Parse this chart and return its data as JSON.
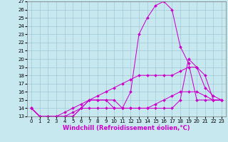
{
  "title": "",
  "xlabel": "Windchill (Refroidissement éolien,°C)",
  "ylabel": "",
  "xlim": [
    -0.5,
    23.5
  ],
  "ylim": [
    13,
    27
  ],
  "xticks": [
    0,
    1,
    2,
    3,
    4,
    5,
    6,
    7,
    8,
    9,
    10,
    11,
    12,
    13,
    14,
    15,
    16,
    17,
    18,
    19,
    20,
    21,
    22,
    23
  ],
  "yticks": [
    13,
    14,
    15,
    16,
    17,
    18,
    19,
    20,
    21,
    22,
    23,
    24,
    25,
    26,
    27
  ],
  "background_color": "#c8e8f0",
  "grid_color": "#a0c8d8",
  "line_color": "#cc00cc",
  "series": [
    {
      "x": [
        0,
        1,
        2,
        3,
        4,
        5,
        6,
        7,
        8,
        9,
        10,
        11,
        12,
        13,
        14,
        15,
        16,
        17,
        18,
        19,
        20,
        21,
        22,
        23
      ],
      "y": [
        14,
        13,
        13,
        13,
        13,
        13,
        14,
        15,
        15,
        15,
        14,
        14,
        16,
        23,
        25,
        26.5,
        27,
        26,
        21.5,
        19.5,
        15,
        15,
        15,
        15
      ]
    },
    {
      "x": [
        0,
        1,
        2,
        3,
        4,
        5,
        6,
        7,
        8,
        9,
        10,
        11,
        12,
        13,
        14,
        15,
        16,
        17,
        18,
        19,
        20,
        21,
        22,
        23
      ],
      "y": [
        14,
        13,
        13,
        13,
        13,
        13,
        14,
        15,
        15,
        15,
        15,
        14,
        14,
        14,
        14,
        14,
        14,
        14,
        15,
        20,
        19,
        16.5,
        15.5,
        15
      ]
    },
    {
      "x": [
        0,
        1,
        2,
        3,
        4,
        5,
        6,
        7,
        8,
        9,
        10,
        11,
        12,
        13,
        14,
        15,
        16,
        17,
        18,
        19,
        20,
        21,
        22,
        23
      ],
      "y": [
        14,
        13,
        13,
        13,
        13.5,
        14,
        14.5,
        15,
        15.5,
        16,
        16.5,
        17,
        17.5,
        18,
        18,
        18,
        18,
        18,
        18.5,
        19,
        19,
        18,
        15,
        15
      ]
    },
    {
      "x": [
        0,
        1,
        2,
        3,
        4,
        5,
        6,
        7,
        8,
        9,
        10,
        11,
        12,
        13,
        14,
        15,
        16,
        17,
        18,
        19,
        20,
        21,
        22,
        23
      ],
      "y": [
        14,
        13,
        13,
        13,
        13,
        13.5,
        14,
        14,
        14,
        14,
        14,
        14,
        14,
        14,
        14,
        14.5,
        15,
        15.5,
        16,
        16,
        16,
        15.5,
        15,
        15
      ]
    }
  ],
  "tick_fontsize": 5,
  "label_fontsize": 6,
  "line_width": 0.75,
  "marker_size": 2.0
}
